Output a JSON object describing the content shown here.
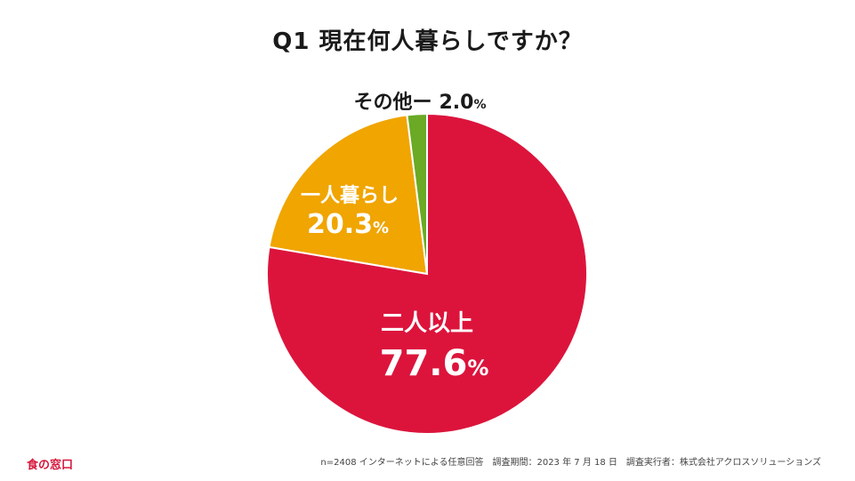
{
  "title": "Q1 現在何人暮らしですか？",
  "chart_data": {
    "type": "pie",
    "start": "top",
    "direction": "clockwise",
    "slices": [
      {
        "label": "二人以上",
        "value": 77.6,
        "value_text": "77.6",
        "unit": "%",
        "color": "#dc143c"
      },
      {
        "label": "一人暮らし",
        "value": 20.3,
        "value_text": "20.3",
        "unit": "%",
        "color": "#f0a500"
      },
      {
        "label": "その他ー",
        "value": 2.0,
        "value_text": "2.0",
        "unit": "%",
        "color": "#6aaa25"
      }
    ]
  },
  "footer": {
    "brand": "食の窓口",
    "note": "n=2408 インターネットによる任意回答　調査期間：2023 年 7 月 18 日　調査実行者：株式会社アクロスソリューションズ"
  }
}
